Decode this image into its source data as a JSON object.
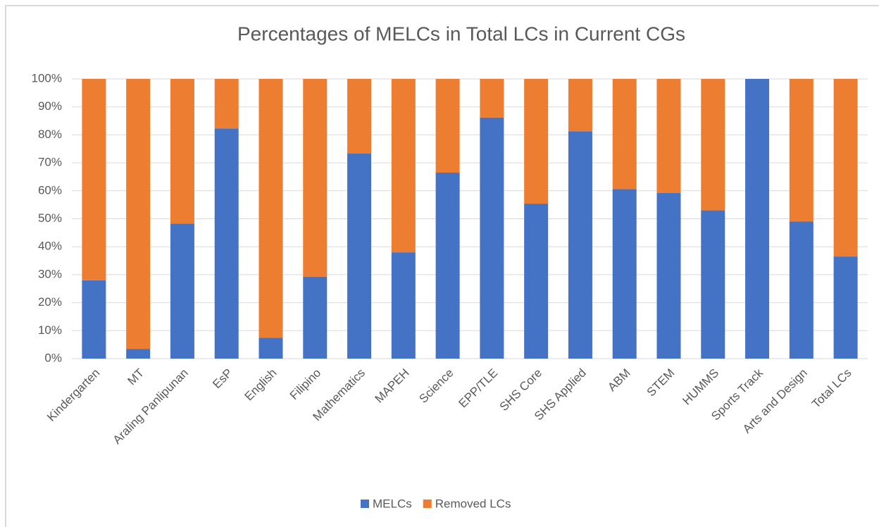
{
  "chart_data": {
    "type": "stacked_bar",
    "title": "Percentages of MELCs in Total LCs in Current CGs",
    "categories": [
      "Kindergarten",
      "MT",
      "Araling Panlipunan",
      "EsP",
      "English",
      "Filipino",
      "Mathematics",
      "MAPEH",
      "Science",
      "EPP/TLE",
      "SHS Core",
      "SHS Applied",
      "ABM",
      "STEM",
      "HUMMS",
      "Sports Track",
      "Arts and Design",
      "Total LCs"
    ],
    "series": [
      {
        "name": "MELCs",
        "color": "#4472c4",
        "values": [
          28,
          3.5,
          48.3,
          82.3,
          7.5,
          29.3,
          73.3,
          38,
          66.5,
          86.2,
          55.4,
          81.3,
          60.6,
          59.2,
          53,
          100,
          49,
          36.5
        ]
      },
      {
        "name": "Removed LCs",
        "color": "#ed7d31",
        "values": [
          72,
          96.5,
          51.7,
          17.7,
          92.5,
          70.7,
          26.7,
          62,
          33.5,
          13.8,
          44.6,
          18.7,
          39.4,
          40.8,
          47,
          0,
          51,
          63.5
        ]
      }
    ],
    "ylim": [
      0,
      100
    ],
    "yticks": [
      {
        "value": 0,
        "label": "0%"
      },
      {
        "value": 10,
        "label": "10%"
      },
      {
        "value": 20,
        "label": "20%"
      },
      {
        "value": 30,
        "label": "30%"
      },
      {
        "value": 40,
        "label": "40%"
      },
      {
        "value": 50,
        "label": "50%"
      },
      {
        "value": 60,
        "label": "60%"
      },
      {
        "value": 70,
        "label": "70%"
      },
      {
        "value": 80,
        "label": "80%"
      },
      {
        "value": 90,
        "label": "90%"
      },
      {
        "value": 100,
        "label": "100%"
      }
    ],
    "grid": true,
    "legend": "bottom"
  }
}
